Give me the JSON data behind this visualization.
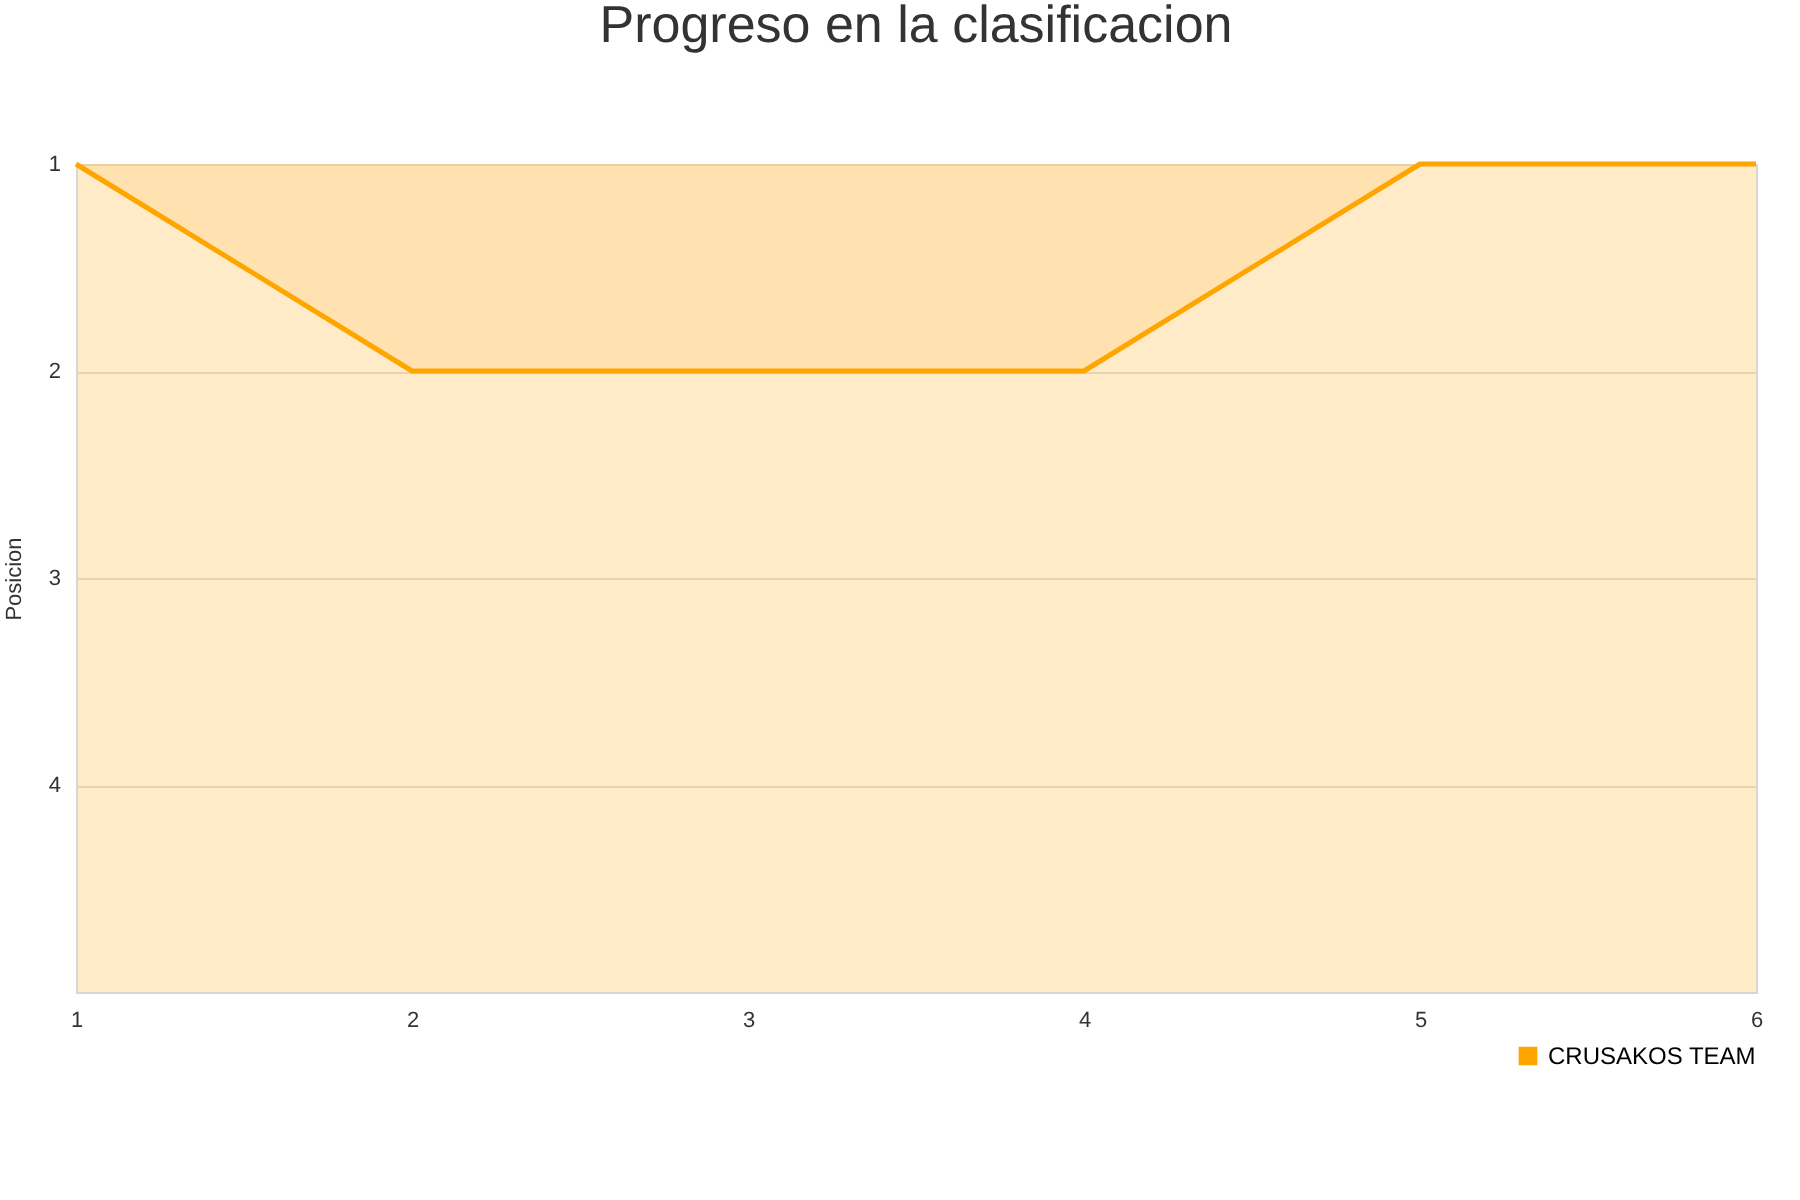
{
  "chart_data": {
    "type": "area",
    "title": "Progreso en la clasificacion",
    "ylabel": "Posicion",
    "x": [
      1,
      2,
      3,
      4,
      5,
      6
    ],
    "series": [
      {
        "name": "CRUSAKOS TEAM",
        "color": "#ffa500",
        "values": [
          1,
          2,
          2,
          2,
          1,
          1
        ]
      }
    ],
    "xlim": [
      1,
      6
    ],
    "xticks": [
      1,
      2,
      3,
      4,
      5,
      6
    ],
    "ylim": [
      5,
      1
    ],
    "yticks": [
      1,
      2,
      3,
      4
    ],
    "grid": "y",
    "legend": "bottom right"
  }
}
